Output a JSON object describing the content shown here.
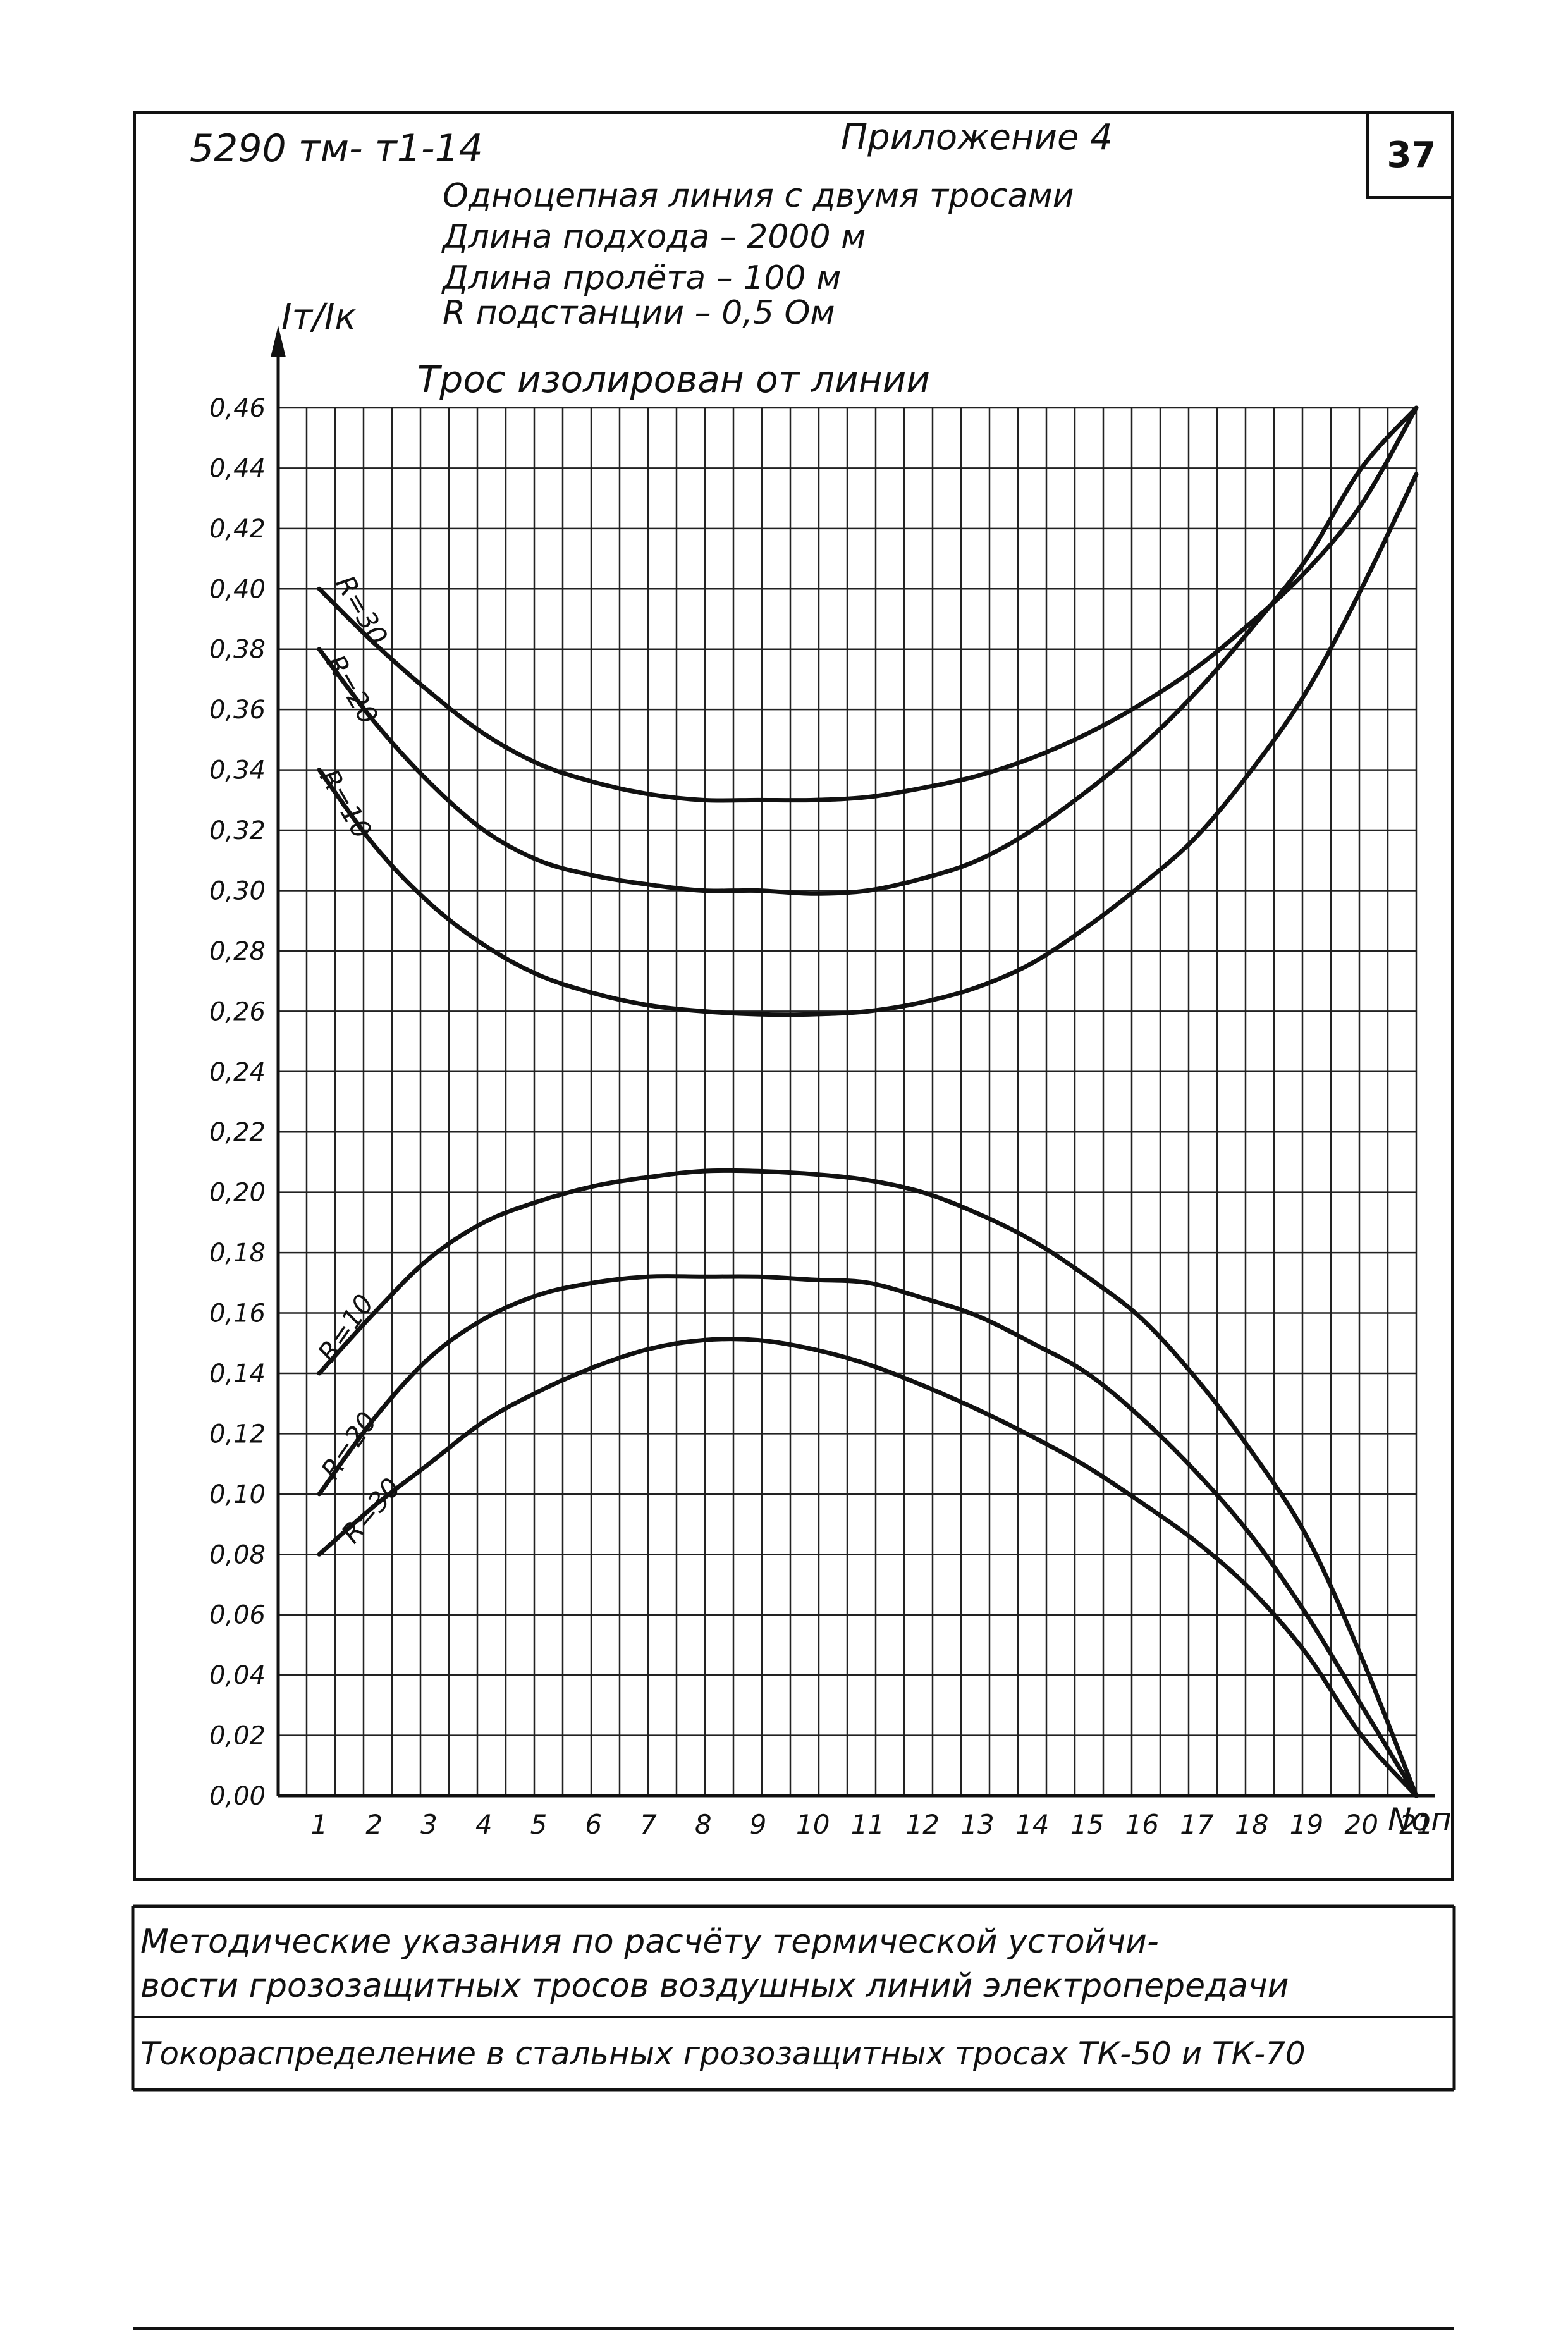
{
  "document": {
    "code": "5290 тм- т1-14",
    "appendix": "Приложение 4",
    "page_number": "37"
  },
  "header": {
    "line1": "Одноцепная линия с двумя тросами",
    "line2": "Длина подхода  –  2000 м",
    "line3": "Длина пролёта  –  100 м",
    "line4": "R подстанции    –  0,5 Ом"
  },
  "footer": {
    "line1": "Методические указания по расчёту термической устойчи-",
    "line2": "вости грозозащитных тросов воздушных линий электропередачи",
    "line3": "Токораспределение в стальных грозозащитных тросах ТК-50 и ТК-70"
  },
  "chart_data": {
    "type": "line",
    "title": "Трос изолирован от линии",
    "ylabel": "Iт/Iк",
    "xlabel": "Nоп",
    "xlim": [
      1,
      21
    ],
    "ylim": [
      0,
      0.46
    ],
    "grid": true,
    "x": [
      1,
      2,
      3,
      4,
      5,
      6,
      7,
      8,
      9,
      10,
      11,
      12,
      13,
      14,
      15,
      16,
      17,
      18,
      19,
      20,
      21
    ],
    "x_tick_labels": [
      "1",
      "2",
      "3",
      "4",
      "5",
      "6",
      "7",
      "8",
      "9",
      "10",
      "11",
      "12",
      "13",
      "14",
      "15",
      "16",
      "17",
      "18",
      "19",
      "20",
      "21"
    ],
    "y_ticks": [
      0.0,
      0.02,
      0.04,
      0.06,
      0.08,
      0.1,
      0.12,
      0.14,
      0.16,
      0.18,
      0.2,
      0.22,
      0.24,
      0.26,
      0.28,
      0.3,
      0.32,
      0.34,
      0.36,
      0.38,
      0.4,
      0.42,
      0.44,
      0.46
    ],
    "y_tick_labels": [
      "0,00",
      "0,02",
      "0,04",
      "0,06",
      "0,08",
      "0,10",
      "0,12",
      "0,14",
      "0,16",
      "0,18",
      "0,20",
      "0,22",
      "0,24",
      "0,26",
      "0,28",
      "0,30",
      "0,32",
      "0,34",
      "0,36",
      "0,38",
      "0,40",
      "0,42",
      "0,44",
      "0,46"
    ],
    "series": [
      {
        "name": "R=30",
        "group": "upper",
        "values": [
          0.4,
          0.382,
          0.366,
          0.352,
          0.342,
          0.336,
          0.332,
          0.33,
          0.33,
          0.33,
          0.331,
          0.334,
          0.338,
          0.344,
          0.352,
          0.362,
          0.374,
          0.389,
          0.406,
          0.428,
          0.46
        ]
      },
      {
        "name": "R=20",
        "group": "upper",
        "values": [
          0.38,
          0.356,
          0.336,
          0.32,
          0.31,
          0.305,
          0.302,
          0.3,
          0.3,
          0.299,
          0.3,
          0.304,
          0.31,
          0.32,
          0.333,
          0.348,
          0.366,
          0.387,
          0.41,
          0.44,
          0.46
        ]
      },
      {
        "name": "R=10",
        "group": "upper",
        "values": [
          0.34,
          0.315,
          0.296,
          0.282,
          0.272,
          0.266,
          0.262,
          0.26,
          0.259,
          0.259,
          0.26,
          0.263,
          0.268,
          0.276,
          0.288,
          0.302,
          0.318,
          0.34,
          0.366,
          0.4,
          0.438
        ]
      },
      {
        "name": "R=10",
        "group": "lower",
        "values": [
          0.14,
          0.16,
          0.178,
          0.19,
          0.197,
          0.202,
          0.205,
          0.207,
          0.207,
          0.206,
          0.204,
          0.2,
          0.193,
          0.184,
          0.172,
          0.158,
          0.138,
          0.114,
          0.086,
          0.046,
          0.0
        ]
      },
      {
        "name": "R=20",
        "group": "lower",
        "values": [
          0.1,
          0.125,
          0.145,
          0.158,
          0.166,
          0.17,
          0.172,
          0.172,
          0.172,
          0.171,
          0.17,
          0.165,
          0.159,
          0.15,
          0.14,
          0.125,
          0.107,
          0.086,
          0.06,
          0.03,
          0.0
        ]
      },
      {
        "name": "R=30",
        "group": "lower",
        "values": [
          0.08,
          0.096,
          0.11,
          0.124,
          0.134,
          0.142,
          0.148,
          0.151,
          0.151,
          0.148,
          0.143,
          0.136,
          0.128,
          0.119,
          0.109,
          0.097,
          0.084,
          0.068,
          0.047,
          0.02,
          0.0
        ]
      }
    ]
  }
}
